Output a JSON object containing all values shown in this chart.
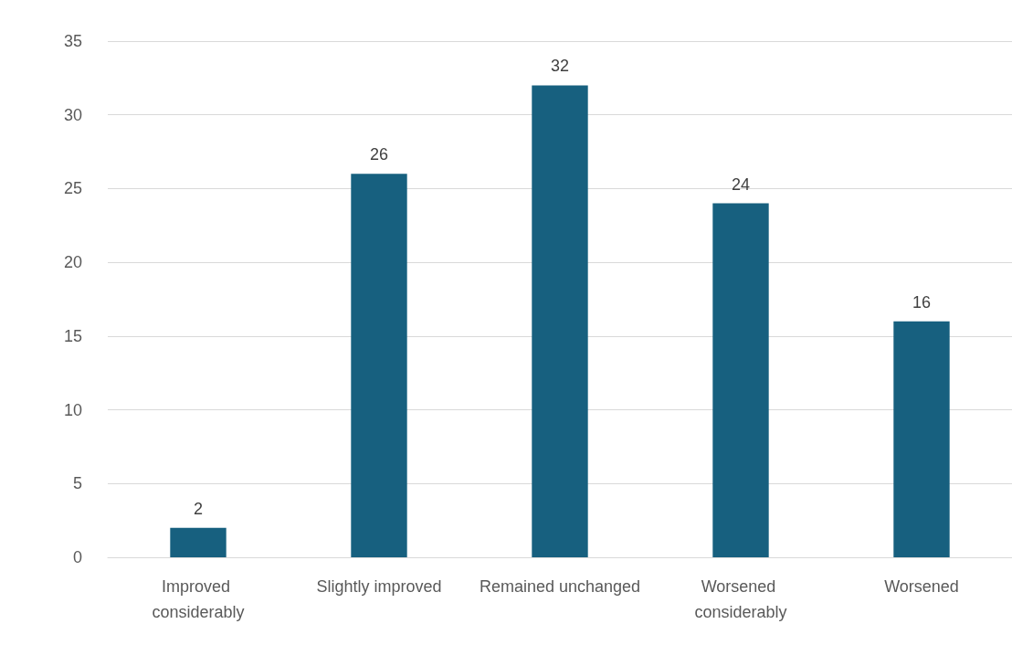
{
  "chart_data": {
    "type": "bar",
    "categories": [
      "Improved considerably",
      "Slightly improved",
      "Remained unchanged",
      "Worsened considerably",
      "Worsened"
    ],
    "values": [
      2,
      26,
      32,
      24,
      16
    ],
    "color": "#17607f",
    "ylim": [
      0,
      35
    ],
    "yticks": [
      0,
      5,
      10,
      15,
      20,
      25,
      30,
      35
    ],
    "grid": "y",
    "data_labels": true
  }
}
